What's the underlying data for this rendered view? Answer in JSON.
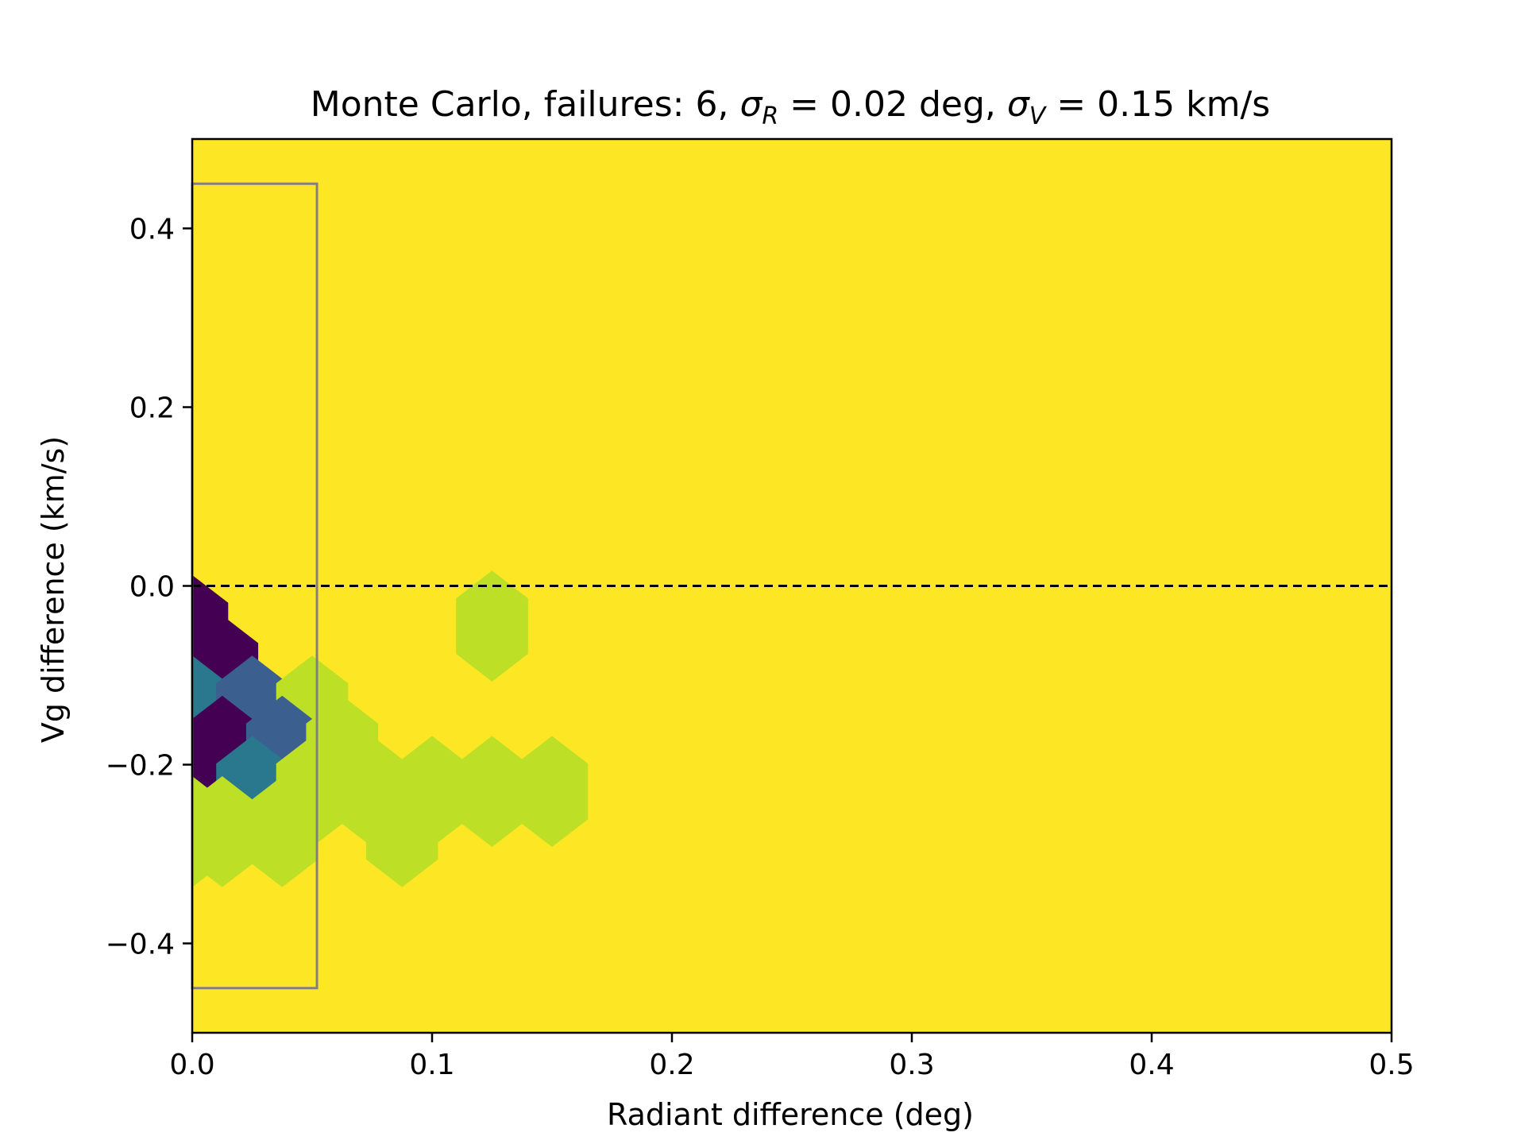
{
  "chart_data": {
    "type": "heatmap",
    "subtype": "hexbin",
    "title_parts": {
      "prefix": "Monte Carlo, failures: 6, ",
      "sigma_r_symbol": "σ",
      "sigma_r_sub": "R",
      "sigma_r_value": " = 0.02 deg, ",
      "sigma_v_symbol": "σ",
      "sigma_v_sub": "V",
      "sigma_v_value": " = 0.15 km/s"
    },
    "xlabel": "Radiant difference (deg)",
    "ylabel": "Vg difference (km/s)",
    "xlim": [
      0.0,
      0.5
    ],
    "ylim": [
      -0.5,
      0.5
    ],
    "xticks": [
      0.0,
      0.1,
      0.2,
      0.3,
      0.4,
      0.5
    ],
    "xtick_labels": [
      "0.0",
      "0.1",
      "0.2",
      "0.3",
      "0.4",
      "0.5"
    ],
    "yticks": [
      -0.4,
      -0.2,
      0.0,
      0.2,
      0.4
    ],
    "ytick_labels": [
      "−0.4",
      "−0.2",
      "0.0",
      "0.2",
      "0.4"
    ],
    "grid": false,
    "background_color": "#fde725",
    "reference_line": {
      "y": 0.0,
      "style": "dashed",
      "color": "#000000"
    },
    "error_box": {
      "x": [
        0.0,
        0.052
      ],
      "y": [
        -0.45,
        0.45
      ],
      "color": "#808080"
    },
    "hexbin": {
      "bin_width_x": 0.0125,
      "bin_height_y": 0.09,
      "cells": [
        {
          "x": 0.0,
          "y": -0.05,
          "color": "#440154"
        },
        {
          "x": 0.0125,
          "y": -0.095,
          "color": "#440154"
        },
        {
          "x": 0.0,
          "y": -0.14,
          "color": "#2a788e"
        },
        {
          "x": 0.025,
          "y": -0.14,
          "color": "#3b5f8f"
        },
        {
          "x": 0.05,
          "y": -0.14,
          "color": "#bddf26"
        },
        {
          "x": 0.0125,
          "y": -0.185,
          "color": "#440154"
        },
        {
          "x": 0.0375,
          "y": -0.185,
          "color": "#3b5f8f"
        },
        {
          "x": 0.0625,
          "y": -0.185,
          "color": "#bddf26"
        },
        {
          "x": 0.025,
          "y": -0.23,
          "color": "#2a788e"
        },
        {
          "x": 0.05,
          "y": -0.23,
          "color": "#bddf26"
        },
        {
          "x": 0.075,
          "y": -0.23,
          "color": "#bddf26"
        },
        {
          "x": 0.1,
          "y": -0.23,
          "color": "#bddf26"
        },
        {
          "x": 0.125,
          "y": -0.23,
          "color": "#bddf26"
        },
        {
          "x": 0.15,
          "y": -0.23,
          "color": "#bddf26"
        },
        {
          "x": 0.0,
          "y": -0.275,
          "color": "#bddf26"
        },
        {
          "x": 0.0125,
          "y": -0.275,
          "color": "#bddf26"
        },
        {
          "x": 0.0375,
          "y": -0.275,
          "color": "#bddf26"
        },
        {
          "x": 0.0875,
          "y": -0.275,
          "color": "#bddf26"
        },
        {
          "x": 0.125,
          "y": -0.045,
          "color": "#bddf26"
        }
      ]
    }
  }
}
